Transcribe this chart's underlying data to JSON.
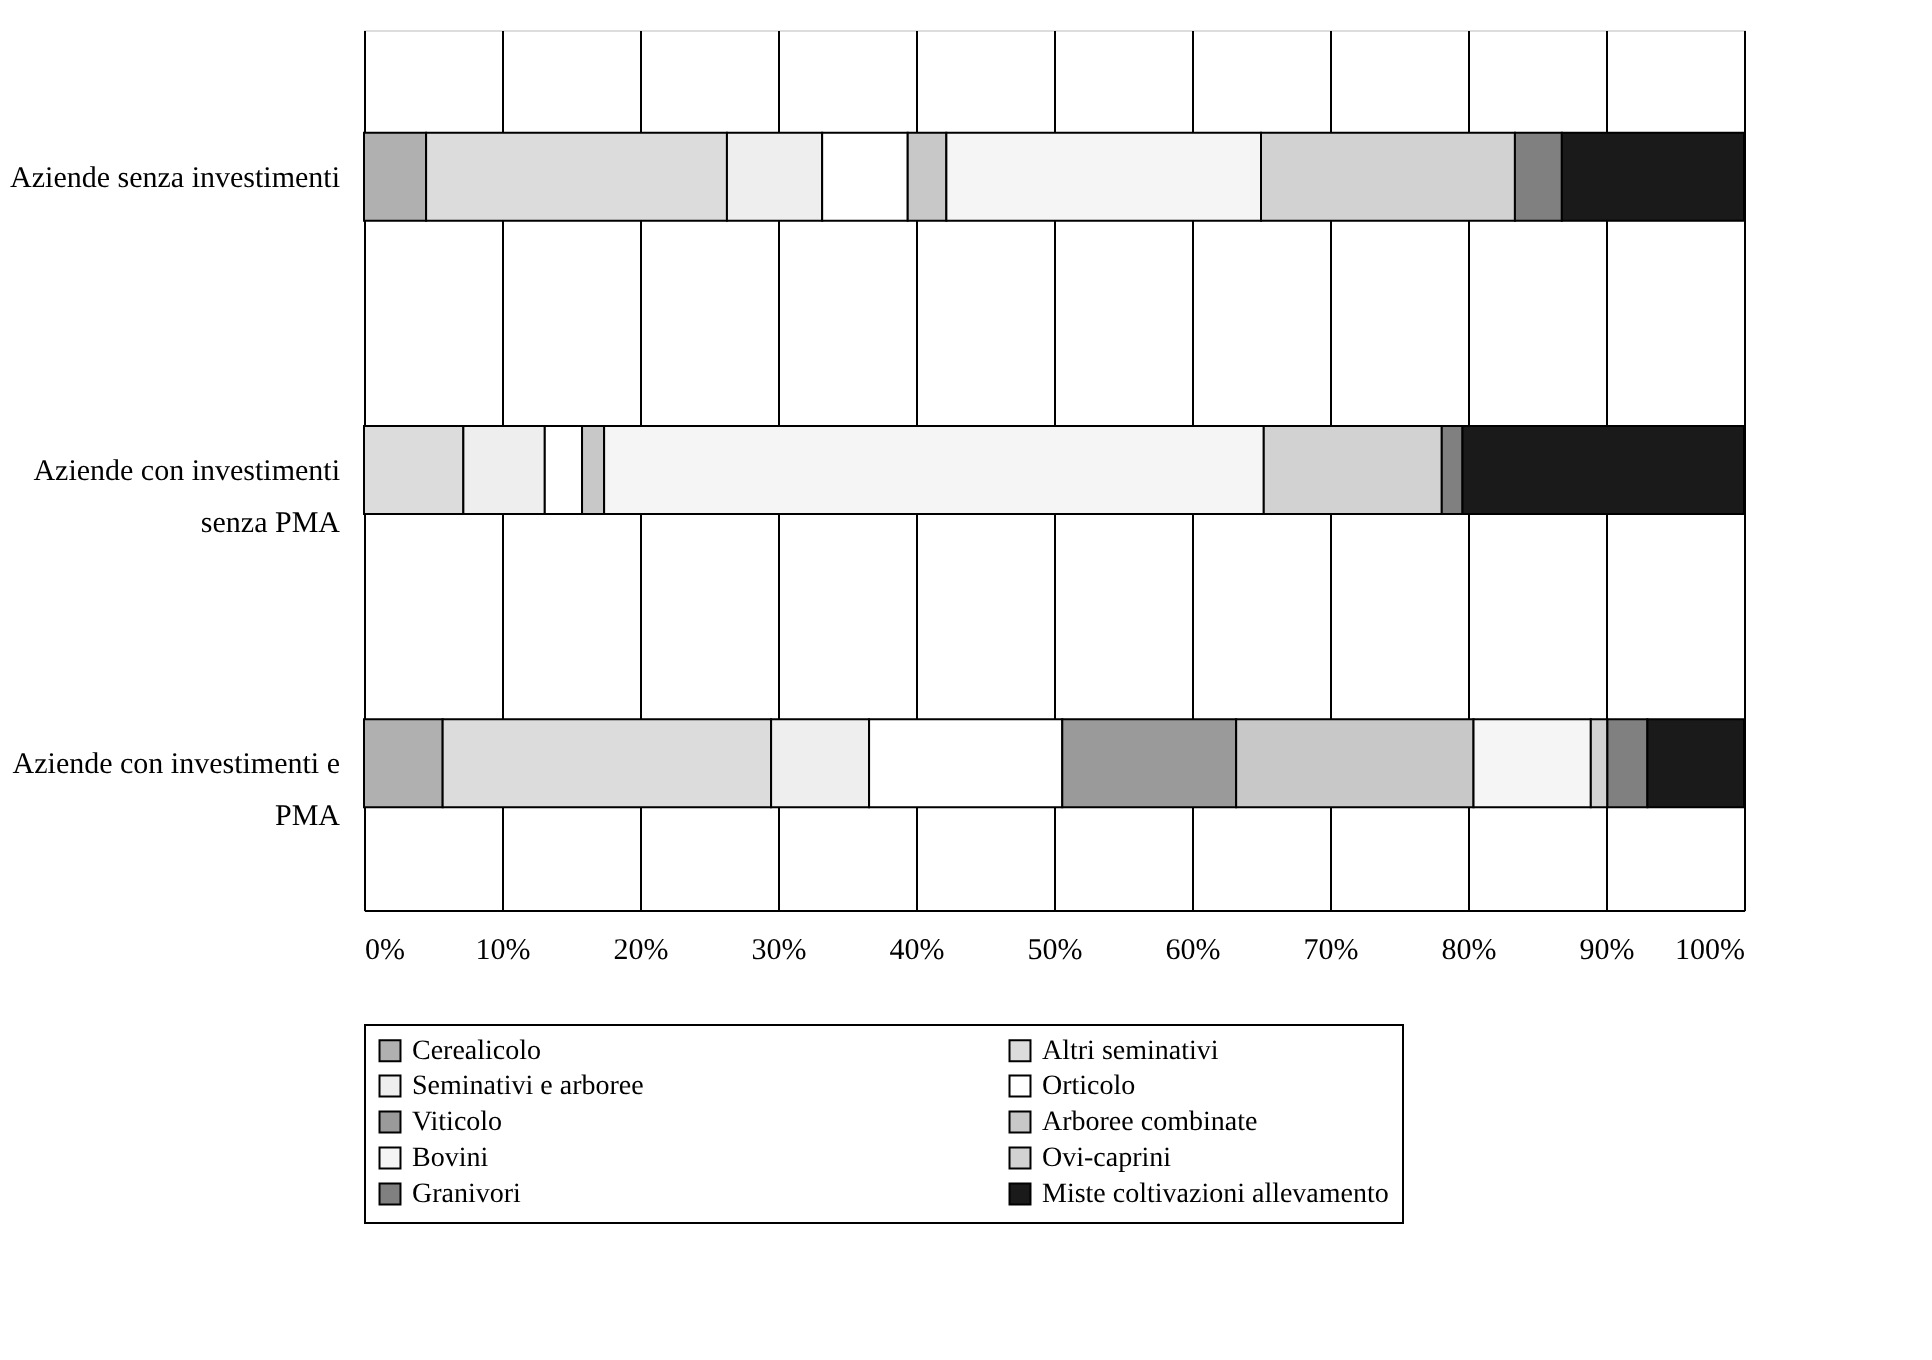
{
  "chart_data": {
    "type": "bar",
    "orientation": "horizontal",
    "stacked": true,
    "categories": [
      "Aziende senza investimenti",
      "Aziende con investimenti senza PMA",
      "Aziende con investimenti e PMA"
    ],
    "series": [
      {
        "name": "Cerealicolo",
        "color": "#b0b0b0",
        "values": [
          4.5,
          0,
          5.7
        ]
      },
      {
        "name": "Altri seminativi",
        "color": "#dcdcdc",
        "values": [
          21.8,
          7.2,
          23.8
        ]
      },
      {
        "name": "Seminativi e arboree",
        "color": "#eeeeee",
        "values": [
          6.9,
          5.9,
          7.1
        ]
      },
      {
        "name": "Orticolo",
        "color": "#ffffff",
        "values": [
          6.2,
          2.7,
          14.0
        ]
      },
      {
        "name": "Viticolo",
        "color": "#9a9a9a",
        "values": [
          0,
          0,
          12.6
        ]
      },
      {
        "name": "Arboree combinate",
        "color": "#c8c8c8",
        "values": [
          2.8,
          1.6,
          17.2
        ]
      },
      {
        "name": "Bovini",
        "color": "#f5f5f5",
        "values": [
          22.8,
          47.8,
          8.5
        ]
      },
      {
        "name": "Ovi-caprini",
        "color": "#d2d2d2",
        "values": [
          18.4,
          12.9,
          1.2
        ]
      },
      {
        "name": "Granivori",
        "color": "#808080",
        "values": [
          3.4,
          1.5,
          2.9
        ]
      },
      {
        "name": "Miste coltivazioni allevamento",
        "color": "#1a1a1a",
        "values": [
          13.2,
          20.4,
          7.0
        ]
      }
    ],
    "xlim": [
      0,
      100
    ],
    "xticks": [
      {
        "value": 0,
        "label": "0%"
      },
      {
        "value": 10,
        "label": "10%"
      },
      {
        "value": 20,
        "label": "20%"
      },
      {
        "value": 30,
        "label": "30%"
      },
      {
        "value": 40,
        "label": "40%"
      },
      {
        "value": 50,
        "label": "50%"
      },
      {
        "value": 60,
        "label": "60%"
      },
      {
        "value": 70,
        "label": "70%"
      },
      {
        "value": 80,
        "label": "80%"
      },
      {
        "value": 90,
        "label": "90%"
      },
      {
        "value": 100,
        "label": "100%"
      }
    ],
    "grid": "x",
    "legend": "bottom"
  }
}
